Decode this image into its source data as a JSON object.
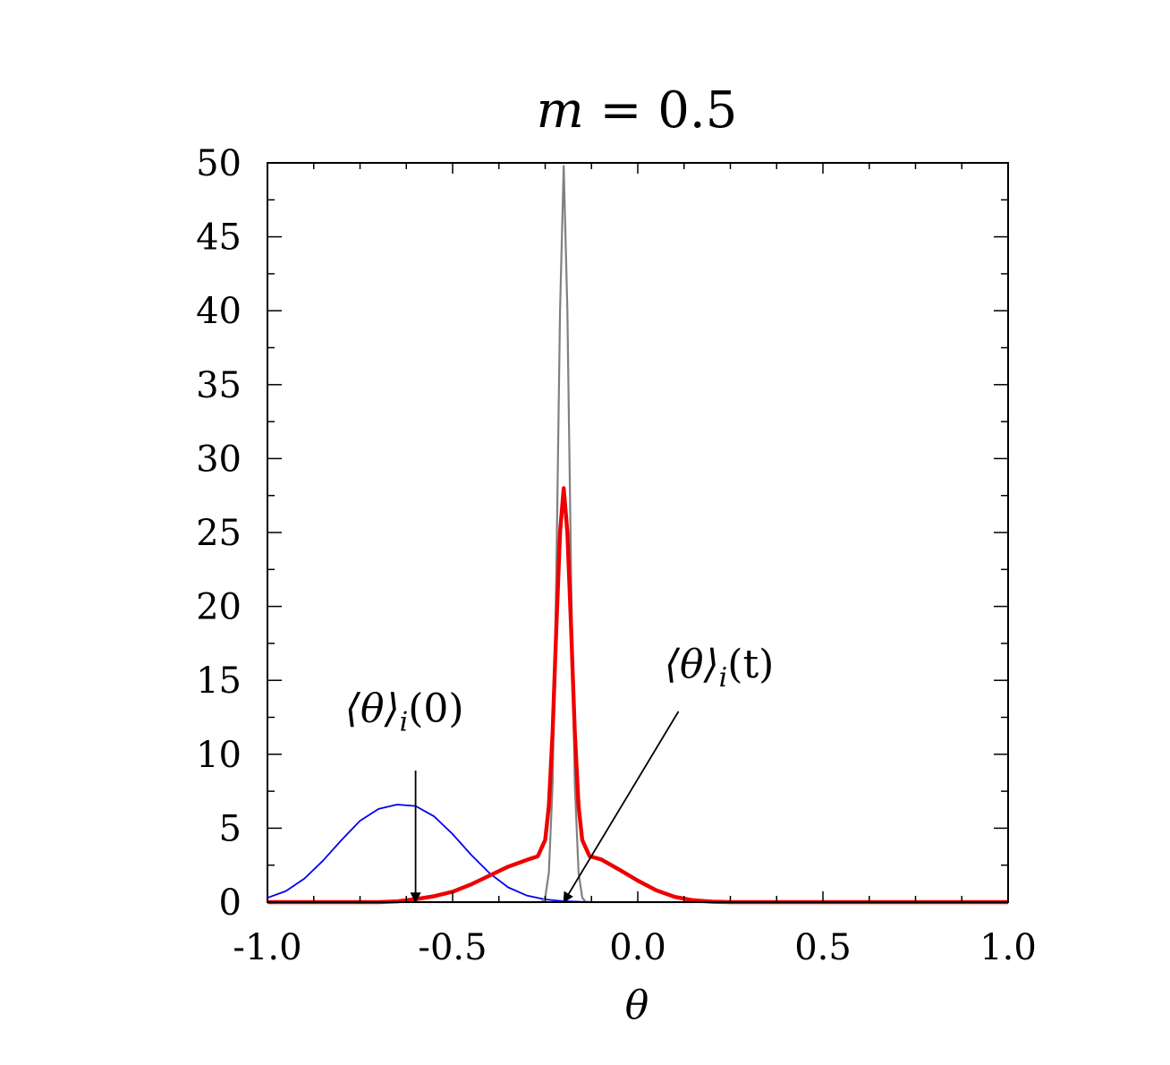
{
  "chart_data": {
    "type": "line",
    "title": {
      "italic": "m",
      "rest": " = 0.5"
    },
    "xlabel": "θ",
    "ylabel": "",
    "xlim": [
      -1.0,
      1.0
    ],
    "ylim": [
      0,
      50
    ],
    "grid": false,
    "x_ticks": [
      {
        "value": -1.0,
        "label": "-1.0"
      },
      {
        "value": -0.5,
        "label": "-0.5"
      },
      {
        "value": 0.0,
        "label": "0.0"
      },
      {
        "value": 0.5,
        "label": "0.5"
      },
      {
        "value": 1.0,
        "label": "1.0"
      }
    ],
    "y_ticks": [
      {
        "value": 0,
        "label": "0"
      },
      {
        "value": 5,
        "label": "5"
      },
      {
        "value": 10,
        "label": "10"
      },
      {
        "value": 15,
        "label": "15"
      },
      {
        "value": 20,
        "label": "20"
      },
      {
        "value": 25,
        "label": "25"
      },
      {
        "value": 30,
        "label": "30"
      },
      {
        "value": 35,
        "label": "35"
      },
      {
        "value": 40,
        "label": "40"
      },
      {
        "value": 45,
        "label": "45"
      },
      {
        "value": 50,
        "label": "50"
      }
    ],
    "series": [
      {
        "color": "#0000ee",
        "points": [
          [
            -1.0,
            0.29
          ],
          [
            -0.95,
            0.75
          ],
          [
            -0.9,
            1.6
          ],
          [
            -0.85,
            2.8
          ],
          [
            -0.8,
            4.2
          ],
          [
            -0.75,
            5.5
          ],
          [
            -0.7,
            6.3
          ],
          [
            -0.65,
            6.6
          ],
          [
            -0.6,
            6.5
          ],
          [
            -0.55,
            5.8
          ],
          [
            -0.5,
            4.6
          ],
          [
            -0.45,
            3.2
          ],
          [
            -0.4,
            1.95
          ],
          [
            -0.35,
            1.0
          ],
          [
            -0.3,
            0.45
          ],
          [
            -0.25,
            0.18
          ],
          [
            -0.2,
            0.06
          ],
          [
            -0.15,
            0.02
          ],
          [
            -0.1,
            0.0
          ],
          [
            1.0,
            0.0
          ]
        ]
      },
      {
        "color": "#808080",
        "points": [
          [
            -1.0,
            0.0
          ],
          [
            -0.26,
            0.0
          ],
          [
            -0.25,
            0.3
          ],
          [
            -0.24,
            2.0
          ],
          [
            -0.23,
            8.0
          ],
          [
            -0.22,
            22.0
          ],
          [
            -0.21,
            40.0
          ],
          [
            -0.2,
            49.8
          ],
          [
            -0.19,
            40.0
          ],
          [
            -0.18,
            22.0
          ],
          [
            -0.17,
            8.0
          ],
          [
            -0.16,
            2.0
          ],
          [
            -0.15,
            0.3
          ],
          [
            -0.14,
            0.0
          ],
          [
            1.0,
            0.0
          ]
        ]
      },
      {
        "color": "#ee0000",
        "points": [
          [
            -1.0,
            0.0
          ],
          [
            -0.7,
            0.0
          ],
          [
            -0.65,
            0.05
          ],
          [
            -0.6,
            0.2
          ],
          [
            -0.55,
            0.4
          ],
          [
            -0.5,
            0.7
          ],
          [
            -0.45,
            1.2
          ],
          [
            -0.4,
            1.8
          ],
          [
            -0.35,
            2.4
          ],
          [
            -0.3,
            2.85
          ],
          [
            -0.27,
            3.1
          ],
          [
            -0.25,
            4.2
          ],
          [
            -0.24,
            6.5
          ],
          [
            -0.23,
            11.5
          ],
          [
            -0.22,
            18.5
          ],
          [
            -0.21,
            25.0
          ],
          [
            -0.2,
            28.0
          ],
          [
            -0.19,
            25.0
          ],
          [
            -0.18,
            18.5
          ],
          [
            -0.17,
            11.5
          ],
          [
            -0.16,
            6.5
          ],
          [
            -0.15,
            4.2
          ],
          [
            -0.13,
            3.1
          ],
          [
            -0.1,
            2.9
          ],
          [
            -0.05,
            2.2
          ],
          [
            0.0,
            1.45
          ],
          [
            0.05,
            0.8
          ],
          [
            0.1,
            0.35
          ],
          [
            0.15,
            0.12
          ],
          [
            0.2,
            0.03
          ],
          [
            0.25,
            0.0
          ],
          [
            1.0,
            0.0
          ]
        ]
      }
    ],
    "annotations": [
      {
        "main": "⟨θ⟩",
        "sub": "i",
        "tail": "(0)",
        "label_at": [
          -0.63,
          12.2
        ],
        "arrow_from": [
          -0.6,
          8.9
        ],
        "arrow_to": [
          -0.6,
          0.0
        ]
      },
      {
        "main": "⟨θ⟩",
        "sub": "i",
        "tail": "(t)",
        "label_at": [
          0.22,
          15.2
        ],
        "arrow_from": [
          0.11,
          12.9
        ],
        "arrow_to": [
          -0.2,
          0.0
        ]
      }
    ]
  }
}
